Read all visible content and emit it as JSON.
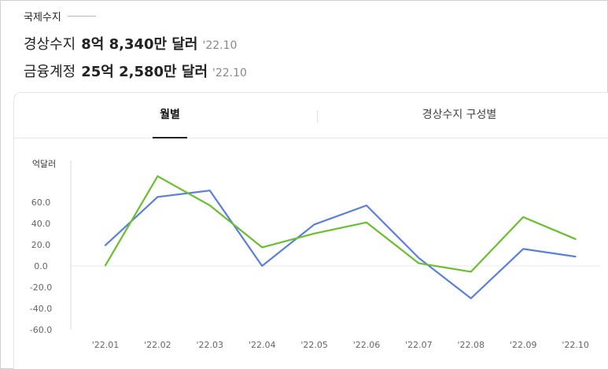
{
  "header": {
    "section_title": "국제수지",
    "current_account": {
      "label": "경상수지",
      "value": "8억 8,340만 달러",
      "period": "'22.10"
    },
    "financial_account": {
      "label": "금융계정",
      "value": "25억 2,580만 달러",
      "period": "'22.10"
    }
  },
  "tabs": [
    {
      "label": "월별",
      "active": true
    },
    {
      "label": "경상수지 구성별",
      "active": false
    }
  ],
  "chart_data": {
    "type": "line",
    "ylabel": "억달러",
    "categories": [
      "'22.01",
      "'22.02",
      "'22.03",
      "'22.04",
      "'22.05",
      "'22.06",
      "'22.07",
      "'22.08",
      "'22.09",
      "'22.10"
    ],
    "ylim": [
      -60,
      60
    ],
    "yticks": [
      60.0,
      40.0,
      20.0,
      0.0,
      -20.0,
      -40.0,
      -60.0
    ],
    "ytick_labels": [
      "60.0",
      "40.0",
      "20.0",
      "0.0",
      "-20.0",
      "-40.0",
      "-60.0"
    ],
    "grid": false,
    "series": [
      {
        "color": "#5b7fe0",
        "values": [
          19.5,
          65,
          71,
          0,
          39,
          57,
          7.5,
          -30.5,
          16,
          8.8
        ]
      },
      {
        "color": "#6abf2e",
        "values": [
          0.5,
          84.5,
          57,
          17.5,
          30.5,
          41,
          2.5,
          -5.5,
          46,
          25.3
        ]
      }
    ]
  }
}
